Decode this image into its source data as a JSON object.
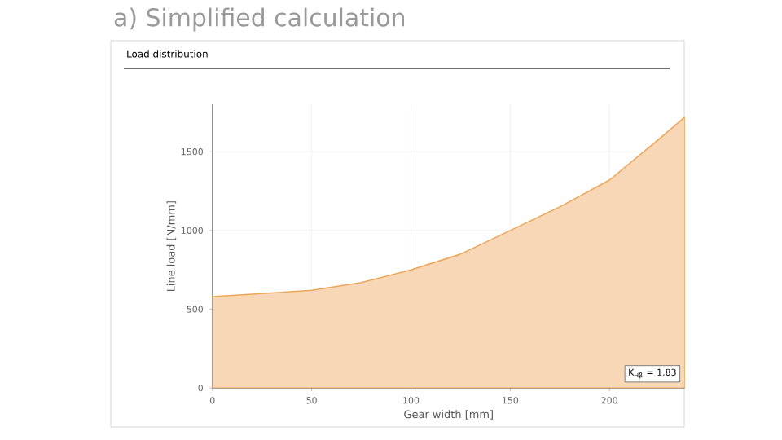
{
  "chart_data": {
    "type": "area",
    "title": "a) Simplified calculation",
    "subtitle": "Load distribution",
    "xlabel": "Gear width [mm]",
    "ylabel": "Line load [N/mm]",
    "x": [
      0,
      25,
      50,
      75,
      100,
      125,
      150,
      175,
      200,
      225,
      238
    ],
    "series": [
      {
        "color": "#eda75c",
        "values": [
          580,
          600,
          620,
          670,
          750,
          850,
          1000,
          1150,
          1320,
          1580,
          1720
        ]
      }
    ],
    "xlim": [
      0,
      238
    ],
    "ylim": [
      0,
      1800
    ],
    "xticks": [
      0,
      50,
      100,
      150,
      200
    ],
    "yticks": [
      0,
      500,
      1000,
      1500
    ],
    "grid": true,
    "annotations": [
      "K$_{Hβ}$ = 1.83"
    ]
  }
}
